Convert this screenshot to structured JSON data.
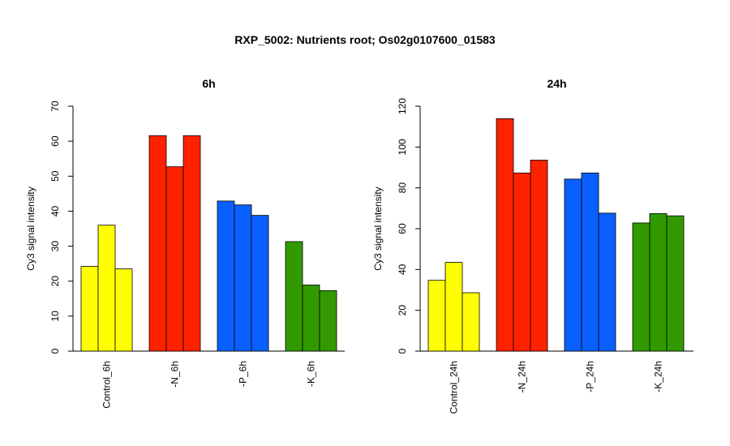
{
  "title": "RXP_5002: Nutrients root; Os02g0107600_01583",
  "chart_data": [
    {
      "type": "bar",
      "title": "6h",
      "ylabel": "Cy3 signal intensity",
      "ylim": [
        0,
        70
      ],
      "yticks": [
        0,
        10,
        20,
        30,
        40,
        50,
        60,
        70
      ],
      "categories": [
        "Control_6h",
        "-N_6h",
        "-P_6h",
        "-K_6h"
      ],
      "colors": [
        "#ffff00",
        "#ff2200",
        "#0a60ff",
        "#339900"
      ],
      "replicates": [
        [
          24.2,
          36.0,
          23.5
        ],
        [
          61.6,
          52.7,
          61.6
        ],
        [
          42.9,
          41.8,
          38.8
        ],
        [
          31.3,
          18.9,
          17.3
        ]
      ]
    },
    {
      "type": "bar",
      "title": "24h",
      "ylabel": "Cy3 signal intensity",
      "ylim": [
        0,
        120
      ],
      "yticks": [
        0,
        20,
        40,
        60,
        80,
        100,
        120
      ],
      "categories": [
        "Control_24h",
        "-N_24h",
        "-P_24h",
        "-K_24h"
      ],
      "colors": [
        "#ffff00",
        "#ff2200",
        "#0a60ff",
        "#339900"
      ],
      "replicates": [
        [
          34.7,
          43.5,
          28.6
        ],
        [
          113.9,
          87.3,
          93.6
        ],
        [
          84.3,
          87.3,
          67.6
        ],
        [
          62.8,
          67.4,
          66.3
        ]
      ]
    }
  ]
}
